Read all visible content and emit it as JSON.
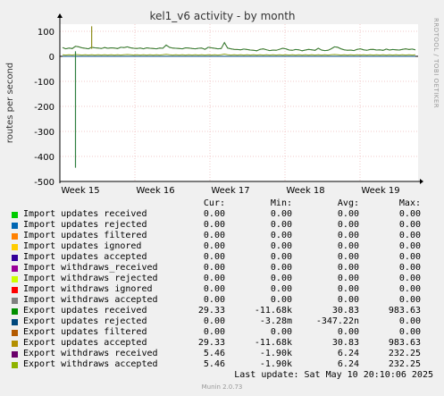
{
  "chart_data": {
    "type": "line",
    "title": "kel1_v6 activity - by month",
    "ylabel": "routes per second",
    "ylim": [
      -500,
      120
    ],
    "yticks": [
      100,
      0,
      -100,
      -200,
      -300,
      -400,
      -500
    ],
    "xticks": [
      "Week 15",
      "Week 16",
      "Week 17",
      "Week 18",
      "Week 19"
    ],
    "side_label": "RRDTOOL / TOBI OETIKER",
    "grid": true,
    "series": [
      {
        "name": "Export updates received",
        "color": "#2F7F40",
        "values": [
          35,
          30,
          33,
          31,
          40,
          38,
          34,
          32,
          30,
          36,
          34,
          33,
          31,
          35,
          32,
          34,
          33,
          31,
          36,
          35,
          38,
          34,
          32,
          31,
          33,
          30,
          34,
          32,
          31,
          30,
          33,
          32,
          45,
          36,
          33,
          32,
          31,
          30,
          34,
          33,
          31,
          30,
          32,
          33,
          28,
          36,
          34,
          32,
          30,
          31,
          55,
          33,
          30,
          28,
          27,
          26,
          29,
          27,
          25,
          24,
          22,
          28,
          30,
          26,
          23,
          25,
          24,
          28,
          32,
          30,
          25,
          24,
          27,
          26,
          22,
          25,
          28,
          26,
          24,
          32,
          25,
          23,
          24,
          30,
          38,
          36,
          30,
          26,
          24,
          25,
          23,
          28,
          30,
          26,
          24,
          27,
          28,
          25,
          26,
          24,
          29,
          25,
          27,
          26,
          25,
          28,
          30,
          27,
          29,
          26
        ]
      },
      {
        "name": "Export updates accepted",
        "color": "#CC7F00",
        "values": [
          35,
          30,
          33,
          31,
          40,
          38,
          34,
          32,
          30,
          36,
          34,
          33,
          31,
          35,
          32,
          34,
          33,
          31,
          36,
          35,
          38,
          34,
          32,
          31,
          33,
          30,
          34,
          32,
          31,
          30,
          33,
          32,
          45,
          36,
          33,
          32,
          31,
          30,
          34,
          33,
          31,
          30,
          32,
          33,
          28,
          36,
          34,
          32,
          30,
          31,
          55,
          33,
          30,
          28,
          27,
          26,
          29,
          27,
          25,
          24,
          22,
          28,
          30,
          26,
          23,
          25,
          24,
          28,
          32,
          30,
          25,
          24,
          27,
          26,
          22,
          25,
          28,
          26,
          24,
          32,
          25,
          23,
          24,
          30,
          38,
          36,
          30,
          26,
          24,
          25,
          23,
          28,
          30,
          26,
          24,
          27,
          28,
          25,
          26,
          24,
          29,
          25,
          27,
          26,
          25,
          28,
          30,
          27,
          29,
          26
        ]
      },
      {
        "name": "Export withdraws accepted",
        "color": "#8FA41C",
        "values": [
          6,
          5,
          6,
          5,
          7,
          6,
          5,
          6,
          5,
          6,
          5,
          6,
          5,
          6,
          5,
          6,
          5,
          6,
          5,
          6,
          7,
          6,
          5,
          6,
          5,
          6,
          5,
          6,
          5,
          6,
          5,
          6,
          8,
          6,
          5,
          6,
          5,
          6,
          5,
          6,
          5,
          6,
          5,
          6,
          5,
          6,
          5,
          6,
          5,
          6,
          9,
          6,
          5,
          6,
          5,
          6,
          5,
          6,
          5,
          6,
          5,
          6,
          5,
          6,
          5,
          6,
          5,
          6,
          5,
          6,
          5,
          6,
          5,
          6,
          5,
          6,
          5,
          6,
          5,
          6,
          5,
          6,
          5,
          6,
          7,
          6,
          5,
          6,
          5,
          6,
          5,
          6,
          5,
          6,
          5,
          6,
          5,
          6,
          5,
          6,
          5,
          6,
          5,
          6,
          5,
          6,
          5,
          6,
          5,
          6
        ]
      },
      {
        "name": "Export updates rejected",
        "color": "#00487D",
        "values": [
          0,
          0,
          0,
          0,
          0,
          0,
          0,
          0,
          0,
          0,
          0,
          0,
          0,
          0,
          0,
          0,
          0,
          0,
          0,
          0,
          0,
          0,
          0,
          0,
          0,
          0,
          0,
          0,
          0,
          0,
          0,
          0,
          0,
          0,
          0,
          0,
          0,
          0,
          0,
          0,
          0,
          0,
          0,
          0,
          0,
          0,
          0,
          0,
          0,
          0,
          0,
          0,
          0,
          0,
          0,
          0,
          0,
          0,
          0,
          0,
          0,
          0,
          0,
          0,
          0,
          0,
          0,
          0,
          0,
          0,
          0,
          0,
          0,
          0,
          0,
          0,
          0,
          0,
          0,
          0,
          0,
          0,
          0,
          0,
          0,
          0,
          0,
          0,
          0,
          0,
          0,
          0,
          0,
          0,
          0,
          0,
          0,
          0,
          0,
          0,
          0,
          0,
          0,
          0,
          0,
          0,
          0,
          0,
          0,
          0
        ]
      }
    ],
    "spike": {
      "x_index": 4,
      "max": 120,
      "min": -445
    }
  },
  "legend": {
    "headers": {
      "cur": "Cur:",
      "min": "Min:",
      "avg": "Avg:",
      "max": "Max:"
    },
    "rows": [
      {
        "name": "Import updates received",
        "color": "#00CC00",
        "cur": "0.00",
        "min": "0.00",
        "avg": "0.00",
        "max": "0.00"
      },
      {
        "name": "Import updates rejected",
        "color": "#0066B3",
        "cur": "0.00",
        "min": "0.00",
        "avg": "0.00",
        "max": "0.00"
      },
      {
        "name": "Import updates filtered",
        "color": "#FF8000",
        "cur": "0.00",
        "min": "0.00",
        "avg": "0.00",
        "max": "0.00"
      },
      {
        "name": "Import updates ignored",
        "color": "#FFCC00",
        "cur": "0.00",
        "min": "0.00",
        "avg": "0.00",
        "max": "0.00"
      },
      {
        "name": "Import updates accepted",
        "color": "#330099",
        "cur": "0.00",
        "min": "0.00",
        "avg": "0.00",
        "max": "0.00"
      },
      {
        "name": "Import withdraws_received",
        "color": "#990099",
        "cur": "0.00",
        "min": "0.00",
        "avg": "0.00",
        "max": "0.00"
      },
      {
        "name": "Import withdraws rejected",
        "color": "#CCFF00",
        "cur": "0.00",
        "min": "0.00",
        "avg": "0.00",
        "max": "0.00"
      },
      {
        "name": "Import withdraws ignored",
        "color": "#FF0000",
        "cur": "0.00",
        "min": "0.00",
        "avg": "0.00",
        "max": "0.00"
      },
      {
        "name": "Import withdraws accepted",
        "color": "#808080",
        "cur": "0.00",
        "min": "0.00",
        "avg": "0.00",
        "max": "0.00"
      },
      {
        "name": "Export updates received",
        "color": "#008F00",
        "cur": "29.33",
        "min": "-11.68k",
        "avg": "30.83",
        "max": "983.63"
      },
      {
        "name": "Export updates rejected",
        "color": "#00487D",
        "cur": "0.00",
        "min": "-3.28m",
        "avg": "-347.22n",
        "max": "0.00"
      },
      {
        "name": "Export updates filtered",
        "color": "#B35A00",
        "cur": "0.00",
        "min": "0.00",
        "avg": "0.00",
        "max": "0.00"
      },
      {
        "name": "Export updates accepted",
        "color": "#B38F00",
        "cur": "29.33",
        "min": "-11.68k",
        "avg": "30.83",
        "max": "983.63"
      },
      {
        "name": "Export withdraws received",
        "color": "#6B006B",
        "cur": "5.46",
        "min": "-1.90k",
        "avg": "6.24",
        "max": "232.25"
      },
      {
        "name": "Export withdraws accepted",
        "color": "#8FB300",
        "cur": "5.46",
        "min": "-1.90k",
        "avg": "6.24",
        "max": "232.25"
      }
    ]
  },
  "footer": {
    "last_update": "Last update: Sat May 10 20:10:06 2025",
    "munin": "Munin 2.0.73"
  }
}
